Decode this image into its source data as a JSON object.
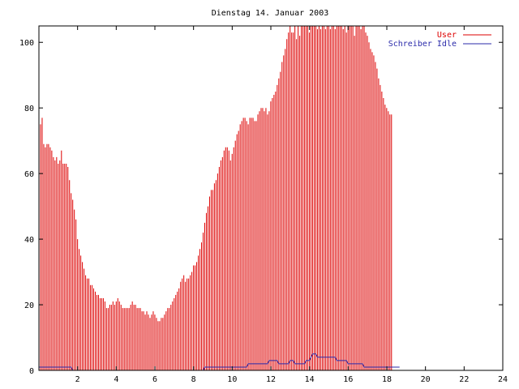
{
  "chart_data": {
    "type": "bar",
    "title": "Dienstag 14. Januar 2003",
    "xlim": [
      0,
      24
    ],
    "ylim": [
      0,
      105
    ],
    "xticks": [
      2,
      4,
      6,
      8,
      10,
      12,
      14,
      16,
      18,
      20,
      22,
      24
    ],
    "yticks": [
      0,
      20,
      40,
      60,
      80,
      100
    ],
    "grid": false,
    "legend_position": "top-right",
    "x_start": 0,
    "x_step": 0.0833,
    "series": [
      {
        "name": "User",
        "style": "impulses",
        "color": "#dd0000",
        "values": [
          77,
          75,
          77,
          69,
          68,
          69,
          69,
          68,
          67,
          65,
          64,
          65,
          63,
          64,
          67,
          63,
          63,
          63,
          62,
          58,
          54,
          52,
          49,
          46,
          40,
          37,
          35,
          33,
          31,
          29,
          28,
          28,
          26,
          26,
          25,
          24,
          23,
          23,
          22,
          22,
          22,
          21,
          19,
          19,
          20,
          20,
          21,
          20,
          21,
          22,
          21,
          20,
          19,
          19,
          19,
          19,
          19,
          20,
          21,
          20,
          20,
          19,
          19,
          19,
          18,
          18,
          17,
          18,
          17,
          16,
          17,
          18,
          17,
          16,
          15,
          15,
          16,
          16,
          17,
          18,
          19,
          19,
          20,
          21,
          22,
          23,
          24,
          25,
          27,
          28,
          29,
          27,
          28,
          28,
          29,
          30,
          32,
          32,
          33,
          35,
          37,
          39,
          42,
          45,
          48,
          50,
          53,
          55,
          55,
          57,
          58,
          60,
          62,
          64,
          65,
          67,
          68,
          68,
          67,
          64,
          66,
          68,
          70,
          72,
          73,
          75,
          76,
          77,
          77,
          76,
          75,
          77,
          77,
          77,
          76,
          76,
          78,
          79,
          80,
          80,
          79,
          80,
          78,
          79,
          82,
          83,
          84,
          85,
          87,
          89,
          91,
          94,
          96,
          98,
          101,
          103,
          105,
          103,
          103,
          105,
          101,
          105,
          102,
          105,
          106,
          105,
          105,
          106,
          103,
          105,
          105,
          105,
          106,
          104,
          105,
          104,
          105,
          106,
          104,
          105,
          106,
          104,
          105,
          107,
          104,
          105,
          105,
          106,
          105,
          104,
          105,
          103,
          105,
          106,
          105,
          106,
          102,
          105,
          106,
          105,
          104,
          105,
          106,
          103,
          102,
          100,
          98,
          97,
          96,
          94,
          92,
          89,
          87,
          85,
          83,
          81,
          80,
          79,
          78,
          78
        ]
      },
      {
        "name": "Schreiber Idle",
        "style": "lines",
        "color": "#2a2aaa",
        "values": [
          1,
          1,
          1,
          1,
          1,
          1,
          1,
          1,
          1,
          1,
          1,
          1,
          1,
          1,
          1,
          1,
          1,
          1,
          1,
          1,
          1,
          0,
          0,
          0,
          0,
          0,
          0,
          0,
          0,
          0,
          0,
          0,
          0,
          0,
          0,
          0,
          0,
          0,
          0,
          0,
          0,
          0,
          0,
          0,
          0,
          0,
          0,
          0,
          0,
          0,
          0,
          0,
          0,
          0,
          0,
          0,
          0,
          0,
          0,
          0,
          0,
          0,
          0,
          0,
          0,
          0,
          0,
          0,
          0,
          0,
          0,
          0,
          0,
          0,
          0,
          0,
          0,
          0,
          0,
          0,
          0,
          0,
          0,
          0,
          0,
          0,
          0,
          0,
          0,
          0,
          0,
          0,
          0,
          0,
          0,
          0,
          0,
          0,
          0,
          0,
          0,
          0,
          0,
          1,
          1,
          1,
          1,
          1,
          1,
          1,
          1,
          1,
          1,
          1,
          1,
          1,
          1,
          1,
          1,
          1,
          1,
          1,
          1,
          1,
          1,
          1,
          1,
          1,
          1,
          1,
          2,
          2,
          2,
          2,
          2,
          2,
          2,
          2,
          2,
          2,
          2,
          2,
          2,
          3,
          3,
          3,
          3,
          3,
          3,
          2,
          2,
          2,
          2,
          2,
          2,
          2,
          3,
          3,
          3,
          2,
          2,
          2,
          2,
          2,
          2,
          2,
          3,
          3,
          3,
          4,
          5,
          5,
          5,
          4,
          4,
          4,
          4,
          4,
          4,
          4,
          4,
          4,
          4,
          4,
          4,
          3,
          3,
          3,
          3,
          3,
          3,
          3,
          2,
          2,
          2,
          2,
          2,
          2,
          2,
          2,
          2,
          2,
          1,
          1,
          1,
          1,
          1,
          1,
          1,
          1,
          1,
          1,
          1,
          1,
          1,
          1,
          1,
          1,
          1,
          1,
          1,
          1,
          1,
          1,
          1
        ]
      }
    ]
  }
}
